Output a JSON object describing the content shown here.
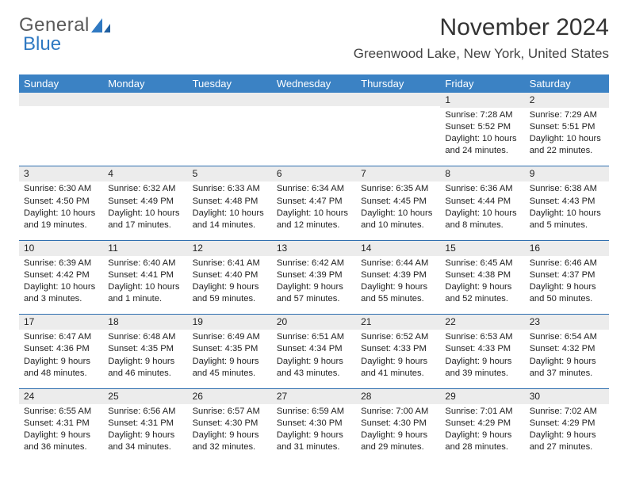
{
  "brand": {
    "part1": "General",
    "part2": "Blue"
  },
  "title": "November 2024",
  "location": "Greenwood Lake, New York, United States",
  "colors": {
    "header_bg": "#3b82c4",
    "header_text": "#ffffff",
    "daynum_bg": "#ececec",
    "rule": "#2f6faf",
    "body_text": "#222222",
    "page_bg": "#ffffff"
  },
  "day_headers": [
    "Sunday",
    "Monday",
    "Tuesday",
    "Wednesday",
    "Thursday",
    "Friday",
    "Saturday"
  ],
  "weeks": [
    [
      null,
      null,
      null,
      null,
      null,
      {
        "n": "1",
        "sunrise": "7:28 AM",
        "sunset": "5:52 PM",
        "dl1": "Daylight: 10 hours",
        "dl2": "and 24 minutes."
      },
      {
        "n": "2",
        "sunrise": "7:29 AM",
        "sunset": "5:51 PM",
        "dl1": "Daylight: 10 hours",
        "dl2": "and 22 minutes."
      }
    ],
    [
      {
        "n": "3",
        "sunrise": "6:30 AM",
        "sunset": "4:50 PM",
        "dl1": "Daylight: 10 hours",
        "dl2": "and 19 minutes."
      },
      {
        "n": "4",
        "sunrise": "6:32 AM",
        "sunset": "4:49 PM",
        "dl1": "Daylight: 10 hours",
        "dl2": "and 17 minutes."
      },
      {
        "n": "5",
        "sunrise": "6:33 AM",
        "sunset": "4:48 PM",
        "dl1": "Daylight: 10 hours",
        "dl2": "and 14 minutes."
      },
      {
        "n": "6",
        "sunrise": "6:34 AM",
        "sunset": "4:47 PM",
        "dl1": "Daylight: 10 hours",
        "dl2": "and 12 minutes."
      },
      {
        "n": "7",
        "sunrise": "6:35 AM",
        "sunset": "4:45 PM",
        "dl1": "Daylight: 10 hours",
        "dl2": "and 10 minutes."
      },
      {
        "n": "8",
        "sunrise": "6:36 AM",
        "sunset": "4:44 PM",
        "dl1": "Daylight: 10 hours",
        "dl2": "and 8 minutes."
      },
      {
        "n": "9",
        "sunrise": "6:38 AM",
        "sunset": "4:43 PM",
        "dl1": "Daylight: 10 hours",
        "dl2": "and 5 minutes."
      }
    ],
    [
      {
        "n": "10",
        "sunrise": "6:39 AM",
        "sunset": "4:42 PM",
        "dl1": "Daylight: 10 hours",
        "dl2": "and 3 minutes."
      },
      {
        "n": "11",
        "sunrise": "6:40 AM",
        "sunset": "4:41 PM",
        "dl1": "Daylight: 10 hours",
        "dl2": "and 1 minute."
      },
      {
        "n": "12",
        "sunrise": "6:41 AM",
        "sunset": "4:40 PM",
        "dl1": "Daylight: 9 hours",
        "dl2": "and 59 minutes."
      },
      {
        "n": "13",
        "sunrise": "6:42 AM",
        "sunset": "4:39 PM",
        "dl1": "Daylight: 9 hours",
        "dl2": "and 57 minutes."
      },
      {
        "n": "14",
        "sunrise": "6:44 AM",
        "sunset": "4:39 PM",
        "dl1": "Daylight: 9 hours",
        "dl2": "and 55 minutes."
      },
      {
        "n": "15",
        "sunrise": "6:45 AM",
        "sunset": "4:38 PM",
        "dl1": "Daylight: 9 hours",
        "dl2": "and 52 minutes."
      },
      {
        "n": "16",
        "sunrise": "6:46 AM",
        "sunset": "4:37 PM",
        "dl1": "Daylight: 9 hours",
        "dl2": "and 50 minutes."
      }
    ],
    [
      {
        "n": "17",
        "sunrise": "6:47 AM",
        "sunset": "4:36 PM",
        "dl1": "Daylight: 9 hours",
        "dl2": "and 48 minutes."
      },
      {
        "n": "18",
        "sunrise": "6:48 AM",
        "sunset": "4:35 PM",
        "dl1": "Daylight: 9 hours",
        "dl2": "and 46 minutes."
      },
      {
        "n": "19",
        "sunrise": "6:49 AM",
        "sunset": "4:35 PM",
        "dl1": "Daylight: 9 hours",
        "dl2": "and 45 minutes."
      },
      {
        "n": "20",
        "sunrise": "6:51 AM",
        "sunset": "4:34 PM",
        "dl1": "Daylight: 9 hours",
        "dl2": "and 43 minutes."
      },
      {
        "n": "21",
        "sunrise": "6:52 AM",
        "sunset": "4:33 PM",
        "dl1": "Daylight: 9 hours",
        "dl2": "and 41 minutes."
      },
      {
        "n": "22",
        "sunrise": "6:53 AM",
        "sunset": "4:33 PM",
        "dl1": "Daylight: 9 hours",
        "dl2": "and 39 minutes."
      },
      {
        "n": "23",
        "sunrise": "6:54 AM",
        "sunset": "4:32 PM",
        "dl1": "Daylight: 9 hours",
        "dl2": "and 37 minutes."
      }
    ],
    [
      {
        "n": "24",
        "sunrise": "6:55 AM",
        "sunset": "4:31 PM",
        "dl1": "Daylight: 9 hours",
        "dl2": "and 36 minutes."
      },
      {
        "n": "25",
        "sunrise": "6:56 AM",
        "sunset": "4:31 PM",
        "dl1": "Daylight: 9 hours",
        "dl2": "and 34 minutes."
      },
      {
        "n": "26",
        "sunrise": "6:57 AM",
        "sunset": "4:30 PM",
        "dl1": "Daylight: 9 hours",
        "dl2": "and 32 minutes."
      },
      {
        "n": "27",
        "sunrise": "6:59 AM",
        "sunset": "4:30 PM",
        "dl1": "Daylight: 9 hours",
        "dl2": "and 31 minutes."
      },
      {
        "n": "28",
        "sunrise": "7:00 AM",
        "sunset": "4:30 PM",
        "dl1": "Daylight: 9 hours",
        "dl2": "and 29 minutes."
      },
      {
        "n": "29",
        "sunrise": "7:01 AM",
        "sunset": "4:29 PM",
        "dl1": "Daylight: 9 hours",
        "dl2": "and 28 minutes."
      },
      {
        "n": "30",
        "sunrise": "7:02 AM",
        "sunset": "4:29 PM",
        "dl1": "Daylight: 9 hours",
        "dl2": "and 27 minutes."
      }
    ]
  ],
  "labels": {
    "sunrise_prefix": "Sunrise: ",
    "sunset_prefix": "Sunset: "
  }
}
